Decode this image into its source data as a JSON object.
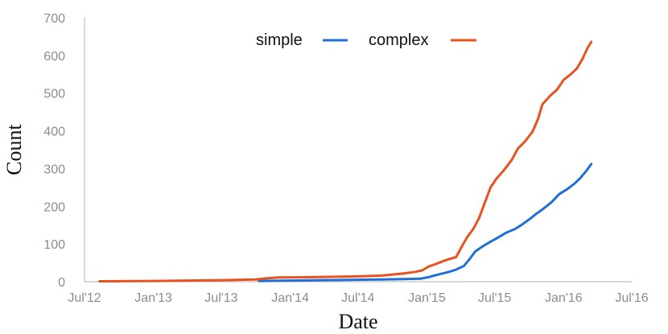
{
  "chart_data": {
    "type": "line",
    "title": "",
    "xlabel": "Date",
    "ylabel": "Count",
    "x_ticks": [
      "Jul'12",
      "Jan'13",
      "Jul'13",
      "Jan'14",
      "Jul'14",
      "Jan'15",
      "Jul'15",
      "Jan'16",
      "Jul'16"
    ],
    "x_tick_dates": [
      "2012-07-01",
      "2013-01-01",
      "2013-07-01",
      "2014-01-01",
      "2014-07-01",
      "2015-01-01",
      "2015-07-01",
      "2016-01-01",
      "2016-07-01"
    ],
    "xlim": [
      "2012-07-01",
      "2016-07-01"
    ],
    "ylim": [
      0,
      700
    ],
    "y_ticks": [
      0,
      100,
      200,
      300,
      400,
      500,
      600,
      700
    ],
    "grid": false,
    "legend": "top-center",
    "series": [
      {
        "name": "simple",
        "color": "#1f6fd6",
        "points": [
          [
            "2013-10-10",
            2
          ],
          [
            "2014-01-01",
            3
          ],
          [
            "2014-06-01",
            5
          ],
          [
            "2014-09-01",
            6
          ],
          [
            "2014-11-01",
            7
          ],
          [
            "2014-12-15",
            8
          ],
          [
            "2015-01-05",
            12
          ],
          [
            "2015-01-20",
            16
          ],
          [
            "2015-02-05",
            20
          ],
          [
            "2015-03-01",
            26
          ],
          [
            "2015-03-20",
            32
          ],
          [
            "2015-04-10",
            42
          ],
          [
            "2015-04-25",
            60
          ],
          [
            "2015-05-10",
            80
          ],
          [
            "2015-06-01",
            95
          ],
          [
            "2015-06-20",
            106
          ],
          [
            "2015-07-10",
            117
          ],
          [
            "2015-08-01",
            130
          ],
          [
            "2015-08-25",
            140
          ],
          [
            "2015-09-10",
            150
          ],
          [
            "2015-10-01",
            165
          ],
          [
            "2015-10-20",
            180
          ],
          [
            "2015-11-10",
            195
          ],
          [
            "2015-12-01",
            212
          ],
          [
            "2015-12-20",
            232
          ],
          [
            "2016-01-10",
            245
          ],
          [
            "2016-01-30",
            260
          ],
          [
            "2016-02-15",
            275
          ],
          [
            "2016-03-01",
            293
          ],
          [
            "2016-03-15",
            312
          ]
        ]
      },
      {
        "name": "complex",
        "color": "#e8521e",
        "points": [
          [
            "2012-08-10",
            1
          ],
          [
            "2013-01-01",
            2
          ],
          [
            "2013-07-01",
            4
          ],
          [
            "2013-10-01",
            6
          ],
          [
            "2013-11-01",
            9
          ],
          [
            "2013-12-01",
            11
          ],
          [
            "2014-03-01",
            12
          ],
          [
            "2014-07-01",
            14
          ],
          [
            "2014-09-01",
            16
          ],
          [
            "2014-11-01",
            22
          ],
          [
            "2014-12-01",
            26
          ],
          [
            "2014-12-20",
            30
          ],
          [
            "2015-01-05",
            40
          ],
          [
            "2015-01-25",
            47
          ],
          [
            "2015-02-15",
            55
          ],
          [
            "2015-03-01",
            60
          ],
          [
            "2015-03-20",
            65
          ],
          [
            "2015-04-05",
            95
          ],
          [
            "2015-04-20",
            120
          ],
          [
            "2015-05-05",
            140
          ],
          [
            "2015-05-20",
            168
          ],
          [
            "2015-06-05",
            210
          ],
          [
            "2015-06-20",
            250
          ],
          [
            "2015-07-05",
            272
          ],
          [
            "2015-07-25",
            295
          ],
          [
            "2015-08-15",
            322
          ],
          [
            "2015-09-01",
            353
          ],
          [
            "2015-09-20",
            372
          ],
          [
            "2015-10-10",
            398
          ],
          [
            "2015-10-25",
            432
          ],
          [
            "2015-11-05",
            470
          ],
          [
            "2015-11-25",
            492
          ],
          [
            "2015-12-15",
            510
          ],
          [
            "2016-01-01",
            535
          ],
          [
            "2016-01-20",
            550
          ],
          [
            "2016-02-05",
            565
          ],
          [
            "2016-02-20",
            590
          ],
          [
            "2016-03-05",
            620
          ],
          [
            "2016-03-15",
            636
          ]
        ]
      }
    ]
  }
}
